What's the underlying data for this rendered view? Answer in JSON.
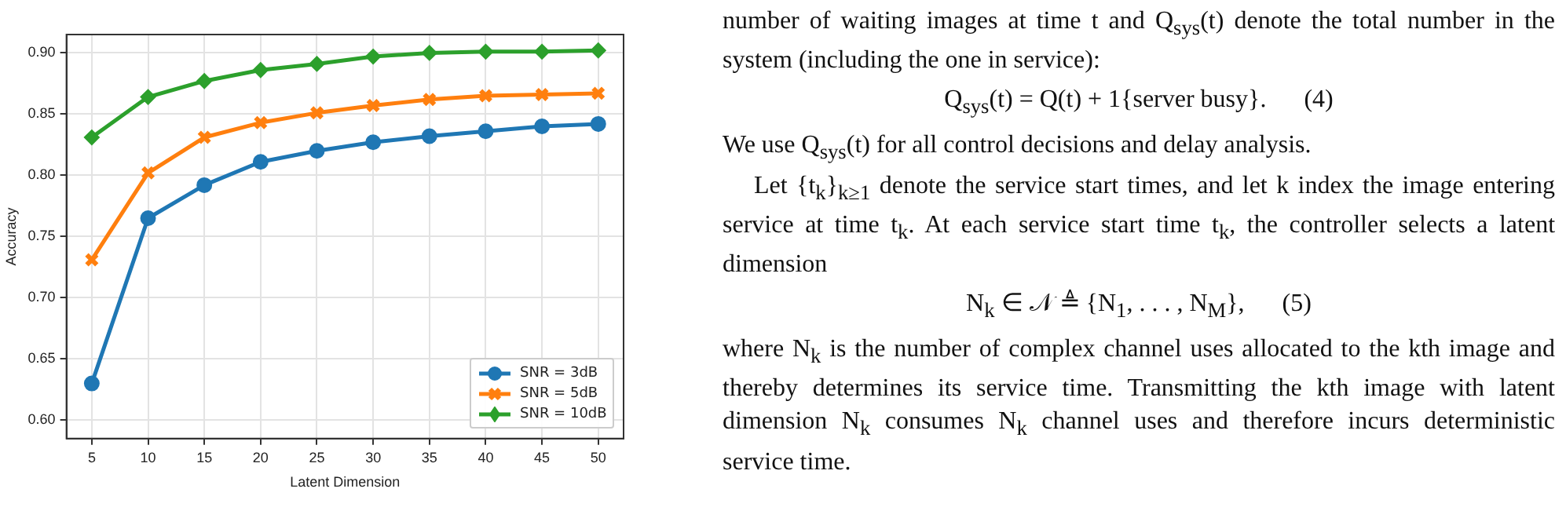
{
  "chart_data": {
    "type": "line",
    "xlabel": "Latent Dimension",
    "ylabel": "Accuracy",
    "x": [
      5,
      10,
      15,
      20,
      25,
      30,
      35,
      40,
      45,
      50
    ],
    "series": [
      {
        "name": "SNR = 3dB",
        "color": "#1f77b4",
        "marker": "circle",
        "values": [
          0.63,
          0.765,
          0.792,
          0.811,
          0.82,
          0.827,
          0.832,
          0.836,
          0.84,
          0.842
        ]
      },
      {
        "name": "SNR = 5dB",
        "color": "#ff7f0e",
        "marker": "cross",
        "values": [
          0.731,
          0.802,
          0.831,
          0.843,
          0.851,
          0.857,
          0.862,
          0.865,
          0.866,
          0.867
        ]
      },
      {
        "name": "SNR = 10dB",
        "color": "#2ca02c",
        "marker": "diamond",
        "values": [
          0.831,
          0.864,
          0.877,
          0.886,
          0.891,
          0.897,
          0.9,
          0.901,
          0.901,
          0.902
        ]
      }
    ],
    "xlim": [
      2.75,
      52.25
    ],
    "xticks": [
      5,
      10,
      15,
      20,
      25,
      30,
      35,
      40,
      45,
      50
    ],
    "ylim": [
      0.585,
      0.915
    ],
    "yticks": [
      {
        "value": 0.6,
        "label": "0.60"
      },
      {
        "value": 0.65,
        "label": "0.65"
      },
      {
        "value": 0.7,
        "label": "0.70"
      },
      {
        "value": 0.75,
        "label": "0.75"
      },
      {
        "value": 0.8,
        "label": "0.80"
      },
      {
        "value": 0.85,
        "label": "0.85"
      },
      {
        "value": 0.9,
        "label": "0.90"
      }
    ],
    "grid": true,
    "legend": "bottom right",
    "line_style": "solid",
    "annotations": [
      "number of waiting images at time t and Q$_{sys}$(t) denote the total number in the system (including the one in service):",
      "Q$_{sys}$(t) = Q(t) + 1{server busy}.      (4)",
      "We use Q$_{sys}$(t) for all control decisions and delay analysis.",
      "Let {t$_{k}$}$_{k≥1}$ denote the service start times, and let k index the image entering service at time t$_{k}$. At each service start time t$_{k}$, the controller selects a latent dimension",
      "N$_{k}$ ∈ 𝒩 ≜ {N$_{1}$, . . . , N$_{M}$},      (5)",
      "where N$_{k}$ is the number of complex channel uses allocated to the kth image and thereby determines its service time. Transmitting the kth image with latent dimension N$_{k}$ consumes N$_{k}$ channel uses and therefore incurs deterministic service time."
    ]
  }
}
